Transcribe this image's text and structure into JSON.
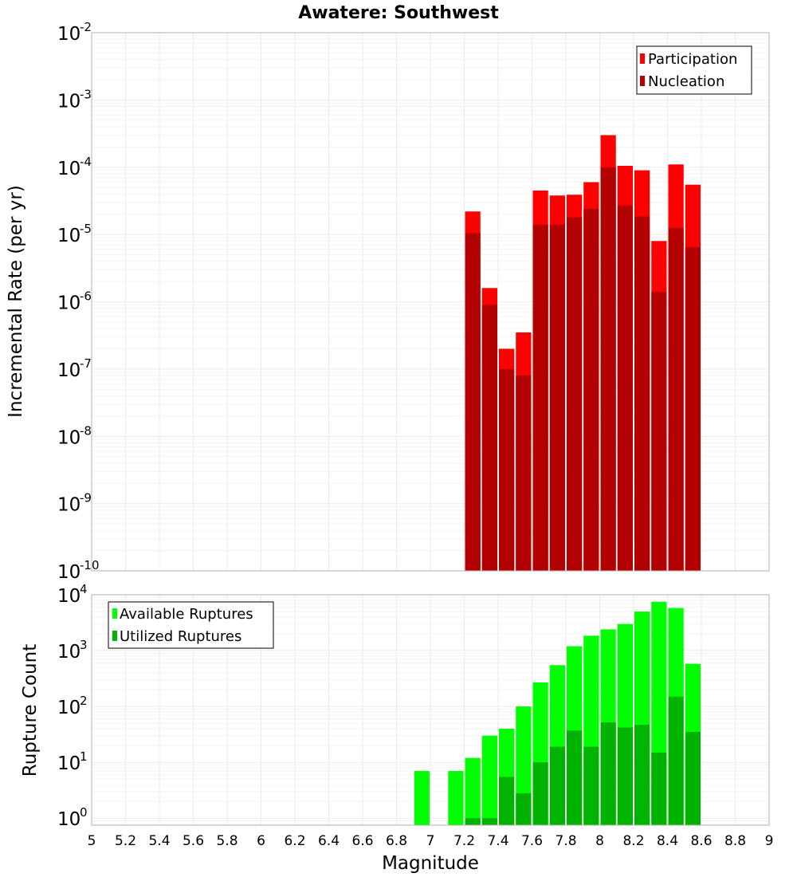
{
  "chart_data": [
    {
      "type": "bar",
      "title": "Awatere: Southwest",
      "xlabel": "",
      "ylabel": "Incremental Rate (per yr)",
      "y_scale": "log",
      "ylim": [
        1e-10,
        0.01
      ],
      "xlim": [
        5,
        9
      ],
      "bar_width": 0.1,
      "grid": true,
      "legend_position": "top-right",
      "x": [
        7.25,
        7.35,
        7.45,
        7.55,
        7.65,
        7.75,
        7.85,
        7.95,
        8.05,
        8.15,
        8.25,
        8.35,
        8.45,
        8.55
      ],
      "series": [
        {
          "name": "Participation",
          "color": "#ff0000",
          "values": [
            2.2e-05,
            1.6e-06,
            2e-07,
            3.5e-07,
            4.5e-05,
            3.8e-05,
            3.9e-05,
            6e-05,
            0.0003,
            0.000105,
            9e-05,
            8e-06,
            0.00011,
            5.5e-05
          ]
        },
        {
          "name": "Nucleation",
          "color": "#b30000",
          "values": [
            1.05e-05,
            9e-07,
            1e-07,
            8e-08,
            1.4e-05,
            1.4e-05,
            1.8e-05,
            2.4e-05,
            0.0001,
            2.7e-05,
            1.85e-05,
            1.4e-06,
            1.25e-05,
            6.5e-06
          ]
        }
      ],
      "ytick_exponents": [
        "-10",
        "-9",
        "-8",
        "-7",
        "-6",
        "-5",
        "-4",
        "-3",
        "-2"
      ]
    },
    {
      "type": "bar",
      "title": "",
      "xlabel": "Magnitude",
      "ylabel": "Rupture Count",
      "y_scale": "log",
      "ylim": [
        0.75,
        10000
      ],
      "xlim": [
        5,
        9
      ],
      "bar_width": 0.1,
      "grid": true,
      "legend_position": "top-left",
      "xtick_labels": [
        "5",
        "5.2",
        "5.4",
        "5.6",
        "5.8",
        "6",
        "6.2",
        "6.4",
        "6.6",
        "6.8",
        "7",
        "7.2",
        "7.4",
        "7.6",
        "7.8",
        "8",
        "8.2",
        "8.4",
        "8.6",
        "8.8",
        "9"
      ],
      "ytick_exponents": [
        "0",
        "1",
        "2",
        "3",
        "4"
      ],
      "series": [
        {
          "name": "Available Ruptures",
          "color": "#00ff00",
          "x": [
            6.95,
            7.15,
            7.25,
            7.35,
            7.45,
            7.55,
            7.65,
            7.75,
            7.85,
            7.95,
            8.05,
            8.15,
            8.25,
            8.35,
            8.45,
            8.55
          ],
          "values": [
            7,
            7,
            12,
            30,
            40,
            100,
            270,
            550,
            1200,
            1850,
            2400,
            3000,
            5000,
            7500,
            5800,
            580
          ]
        },
        {
          "name": "Utilized Ruptures",
          "color": "#00b300",
          "x": [
            7.25,
            7.35,
            7.45,
            7.55,
            7.65,
            7.75,
            7.85,
            7.95,
            8.05,
            8.15,
            8.25,
            8.35,
            8.45,
            8.55
          ],
          "values": [
            1,
            1,
            5.5,
            2.8,
            10,
            19,
            37,
            19,
            52,
            42,
            47,
            15,
            150,
            35
          ]
        }
      ]
    }
  ]
}
